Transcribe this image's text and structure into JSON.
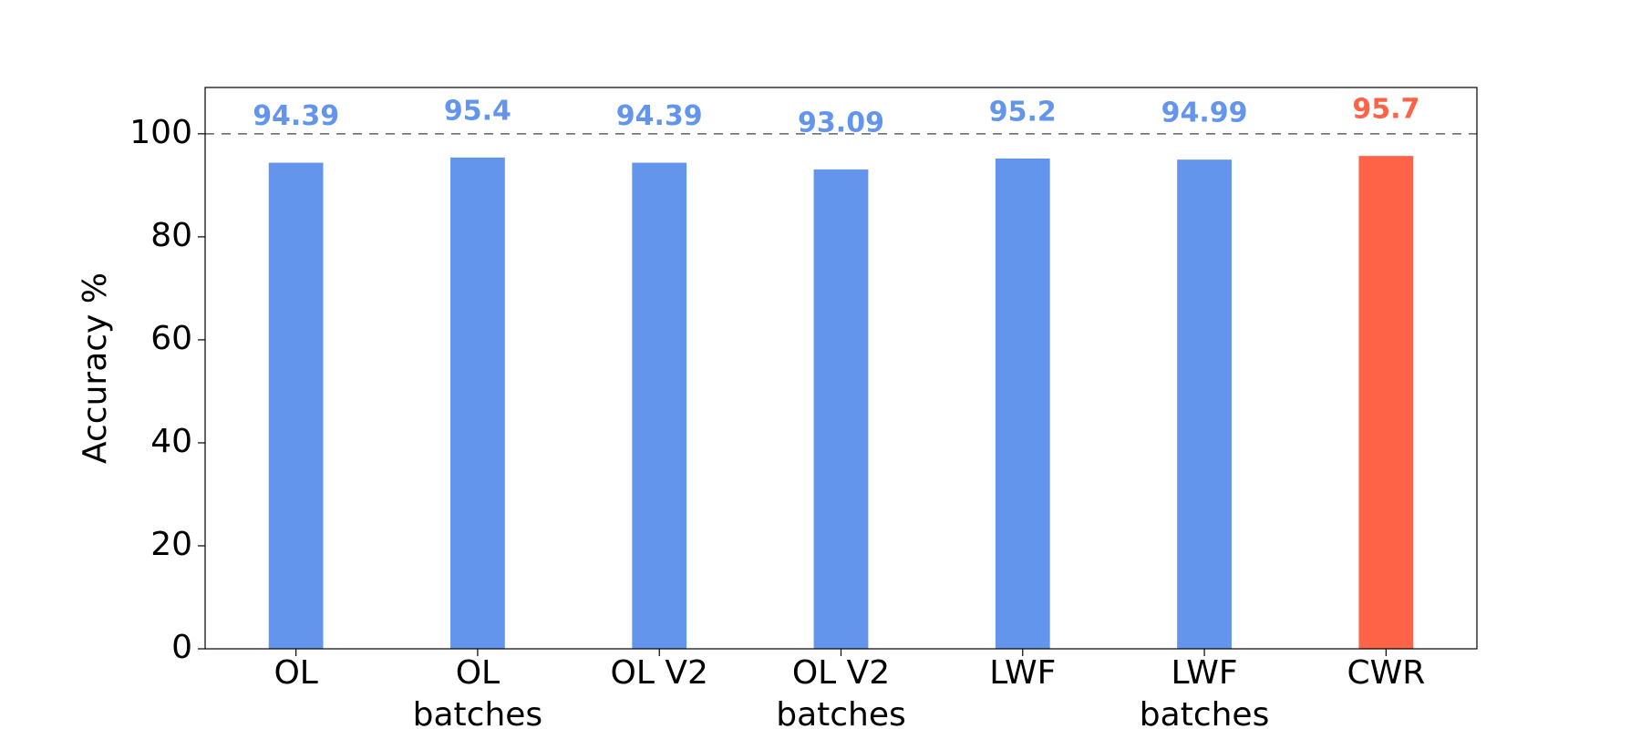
{
  "chart_data": {
    "type": "bar",
    "ylabel": "Accuracy %",
    "categories": [
      "OL",
      "OL\nbatches",
      "OL V2",
      "OL V2\nbatches",
      "LWF",
      "LWF\nbatches",
      "CWR"
    ],
    "values": [
      94.39,
      95.4,
      94.39,
      93.09,
      95.2,
      94.99,
      95.7
    ],
    "colors": [
      "#6495ed",
      "#6495ed",
      "#6495ed",
      "#6495ed",
      "#6495ed",
      "#6495ed",
      "#ff6347"
    ],
    "ylim": [
      0,
      109
    ],
    "yticks": [
      0,
      20,
      40,
      60,
      80,
      100
    ],
    "hline": 100
  }
}
